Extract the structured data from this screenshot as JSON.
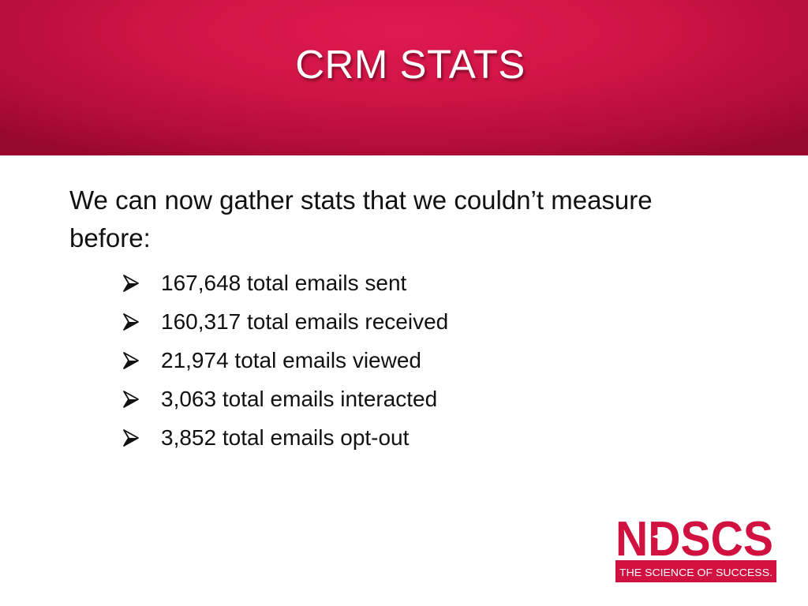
{
  "slide": {
    "title": "CRM STATS",
    "intro": "We can now gather stats that we couldn’t measure before:",
    "bullet_icon": "arrow-bullet-icon",
    "stats": [
      "167,648 total emails sent",
      "160,317 total emails received",
      "21,974 total emails viewed",
      "3,063 total emails interacted",
      "3,852 total emails opt-out"
    ]
  },
  "logo": {
    "wordmark": "NDSCS",
    "tagline": "THE SCIENCE OF SUCCESS.",
    "brand_color": "#d11241"
  },
  "theme": {
    "header_color": "#cf1444",
    "text_color": "#111111"
  }
}
